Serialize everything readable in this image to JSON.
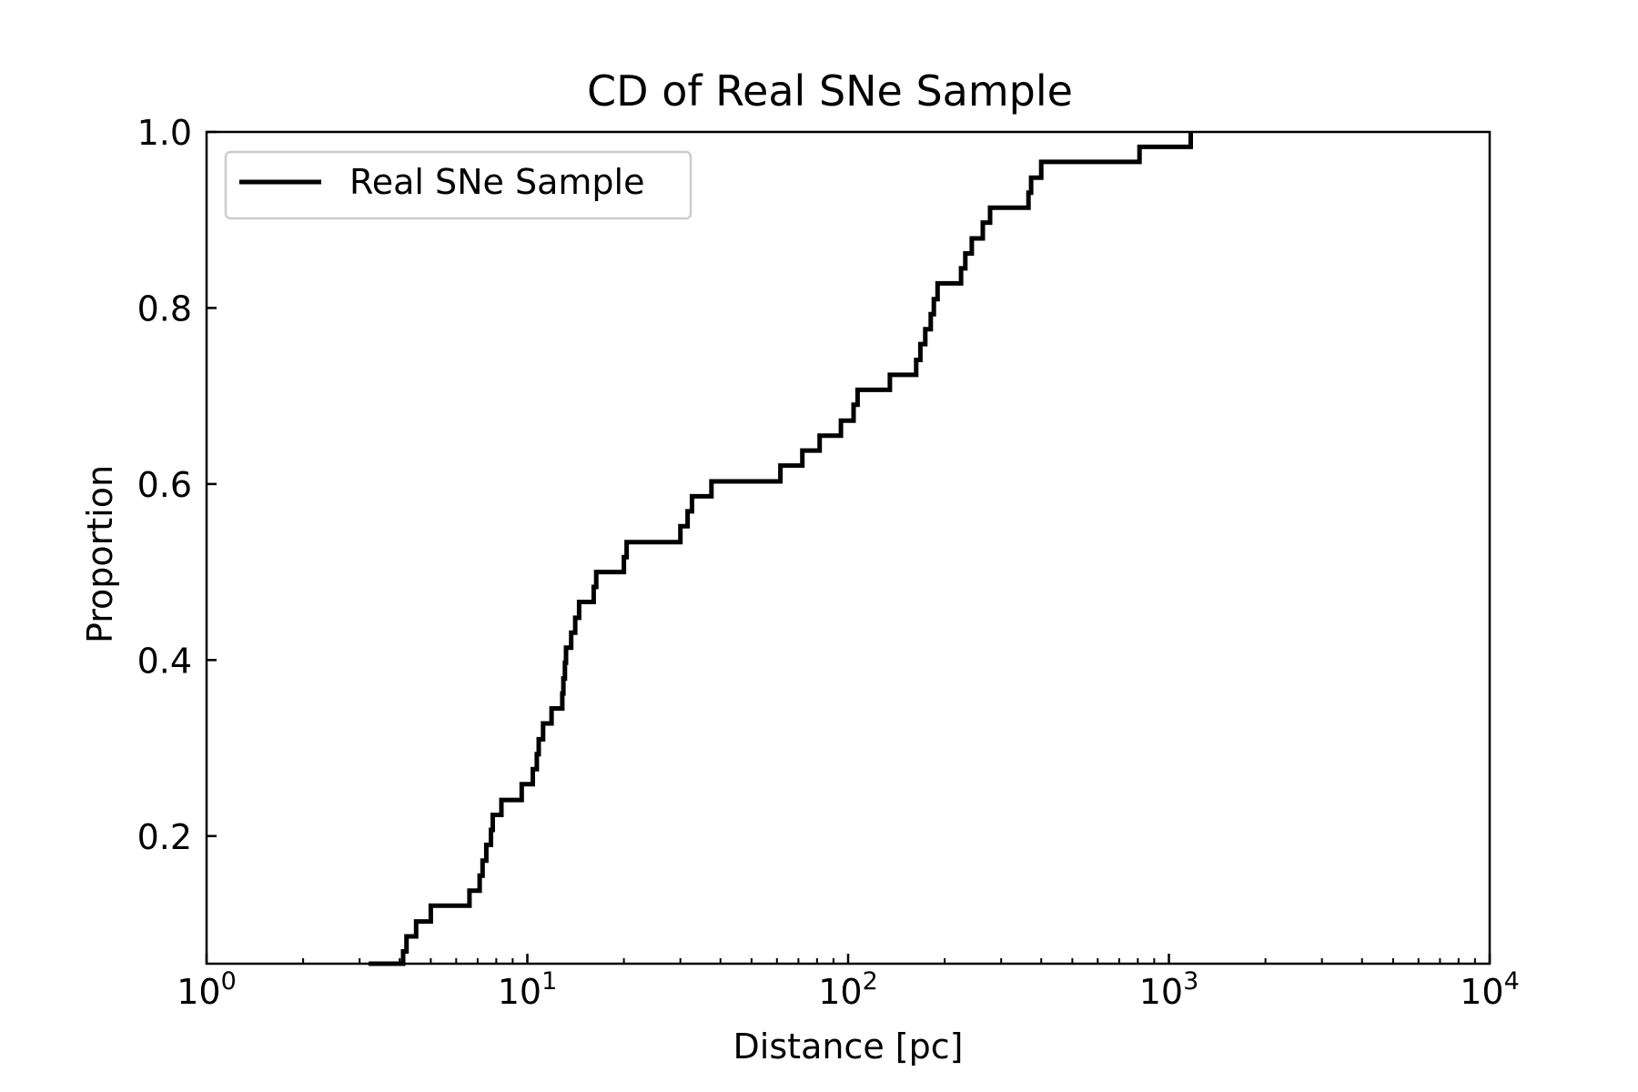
{
  "chart_data": {
    "type": "line",
    "step": true,
    "title": "CD of Real SNe Sample",
    "xlabel": "Distance [pc]",
    "ylabel": "Proportion",
    "xscale": "log",
    "xlim": [
      1,
      10000
    ],
    "ylim": [
      0.055,
      1.0
    ],
    "yticks": [
      "0.2",
      "0.4",
      "0.6",
      "0.8",
      "1.0"
    ],
    "xticks": [
      {
        "base": "10",
        "exp": "0"
      },
      {
        "base": "10",
        "exp": "1"
      },
      {
        "base": "10",
        "exp": "2"
      },
      {
        "base": "10",
        "exp": "3"
      },
      {
        "base": "10",
        "exp": "4"
      }
    ],
    "grid": false,
    "legend_position": "top-left",
    "line_color": "#000000",
    "series": [
      {
        "name": "Real SNe Sample",
        "points": [
          [
            3.2,
            0.055
          ],
          [
            4.1,
            0.069
          ],
          [
            4.2,
            0.086
          ],
          [
            4.5,
            0.103
          ],
          [
            5.0,
            0.121
          ],
          [
            6.6,
            0.138
          ],
          [
            7.1,
            0.155
          ],
          [
            7.25,
            0.172
          ],
          [
            7.45,
            0.19
          ],
          [
            7.7,
            0.207
          ],
          [
            7.8,
            0.224
          ],
          [
            8.3,
            0.241
          ],
          [
            9.6,
            0.259
          ],
          [
            10.4,
            0.276
          ],
          [
            10.7,
            0.293
          ],
          [
            10.85,
            0.31
          ],
          [
            11.2,
            0.328
          ],
          [
            11.9,
            0.345
          ],
          [
            12.85,
            0.362
          ],
          [
            12.95,
            0.379
          ],
          [
            13.1,
            0.397
          ],
          [
            13.2,
            0.414
          ],
          [
            13.7,
            0.431
          ],
          [
            14.1,
            0.448
          ],
          [
            14.5,
            0.466
          ],
          [
            16.1,
            0.483
          ],
          [
            16.4,
            0.5
          ],
          [
            20.0,
            0.517
          ],
          [
            20.4,
            0.534
          ],
          [
            30.0,
            0.552
          ],
          [
            31.6,
            0.569
          ],
          [
            32.6,
            0.586
          ],
          [
            37.5,
            0.603
          ],
          [
            61.5,
            0.621
          ],
          [
            72.0,
            0.638
          ],
          [
            81.5,
            0.655
          ],
          [
            95.0,
            0.672
          ],
          [
            104.0,
            0.69
          ],
          [
            107.0,
            0.707
          ],
          [
            135.0,
            0.724
          ],
          [
            163.0,
            0.741
          ],
          [
            168.0,
            0.759
          ],
          [
            174.0,
            0.776
          ],
          [
            181.0,
            0.793
          ],
          [
            185.0,
            0.81
          ],
          [
            190.0,
            0.828
          ],
          [
            225.0,
            0.845
          ],
          [
            232.0,
            0.862
          ],
          [
            243.0,
            0.879
          ],
          [
            263.0,
            0.897
          ],
          [
            277.0,
            0.914
          ],
          [
            365.0,
            0.931
          ],
          [
            372.0,
            0.948
          ],
          [
            400.0,
            0.966
          ],
          [
            810.0,
            0.983
          ],
          [
            1170.0,
            1.0
          ]
        ]
      }
    ]
  }
}
